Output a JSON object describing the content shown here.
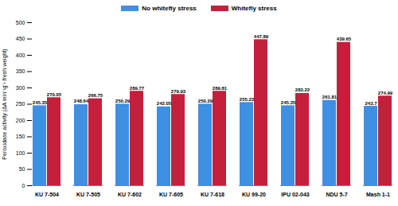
{
  "chart_data": {
    "type": "bar",
    "categories": [
      "KU 7-504",
      "KU 7-505",
      "KU 7-602",
      "KU 7-605",
      "KU 7-618",
      "KU 99-20",
      "IPU 02-043",
      "NDU 5-7",
      "Mash 1-1"
    ],
    "series": [
      {
        "name": "No whitefly stress",
        "color": "#3f8fe3",
        "values": [
          245.35,
          248.64,
          250.29,
          242.05,
          250.29,
          255.23,
          245.35,
          261.81,
          243.7
        ]
      },
      {
        "name": "Whitefly stress",
        "color": "#c4203b",
        "values": [
          270.05,
          266.75,
          289.77,
          279.93,
          289.81,
          447.89,
          283.22,
          439.65,
          274.99
        ]
      }
    ],
    "y_label": "Peroxidase activity (ΔA min⁻¹g⁻¹ fresh weight)",
    "ylim": [
      0,
      500
    ],
    "yticks": [
      0,
      50,
      100,
      150,
      200,
      250,
      300,
      350,
      400,
      450,
      500
    ],
    "grid": false,
    "legend": "top",
    "data_labels": true
  }
}
